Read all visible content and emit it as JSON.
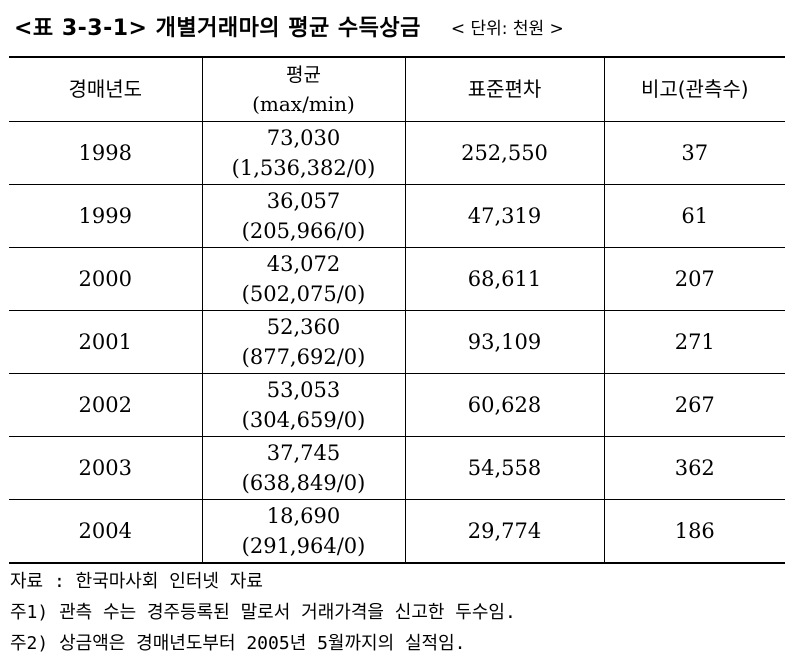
{
  "title": "<표 3-3-1> 개별거래마의 평균 수득상금",
  "unit": "< 단위: 천원 >",
  "table": {
    "headers": {
      "col1": "경매년도",
      "col2_line1": "평균",
      "col2_line2": "(max/min)",
      "col3": "표준편차",
      "col4": "비고(관측수)"
    },
    "rows": [
      {
        "year": "1998",
        "avg": "73,030",
        "maxmin": "(1,536,382/0)",
        "sd": "252,550",
        "n": "37"
      },
      {
        "year": "1999",
        "avg": "36,057",
        "maxmin": "(205,966/0)",
        "sd": "47,319",
        "n": "61"
      },
      {
        "year": "2000",
        "avg": "43,072",
        "maxmin": "(502,075/0)",
        "sd": "68,611",
        "n": "207"
      },
      {
        "year": "2001",
        "avg": "52,360",
        "maxmin": "(877,692/0)",
        "sd": "93,109",
        "n": "271"
      },
      {
        "year": "2002",
        "avg": "53,053",
        "maxmin": "(304,659/0)",
        "sd": "60,628",
        "n": "267"
      },
      {
        "year": "2003",
        "avg": "37,745",
        "maxmin": "(638,849/0)",
        "sd": "54,558",
        "n": "362"
      },
      {
        "year": "2004",
        "avg": "18,690",
        "maxmin": "(291,964/0)",
        "sd": "29,774",
        "n": "186"
      }
    ]
  },
  "notes": [
    "자료 : 한국마사회 인터넷 자료",
    "주1) 관측 수는 경주등록된 말로서 거래가격을 신고한 두수임.",
    "주2) 상금액은 경매년도부터 2005년 5월까지의 실적임."
  ]
}
